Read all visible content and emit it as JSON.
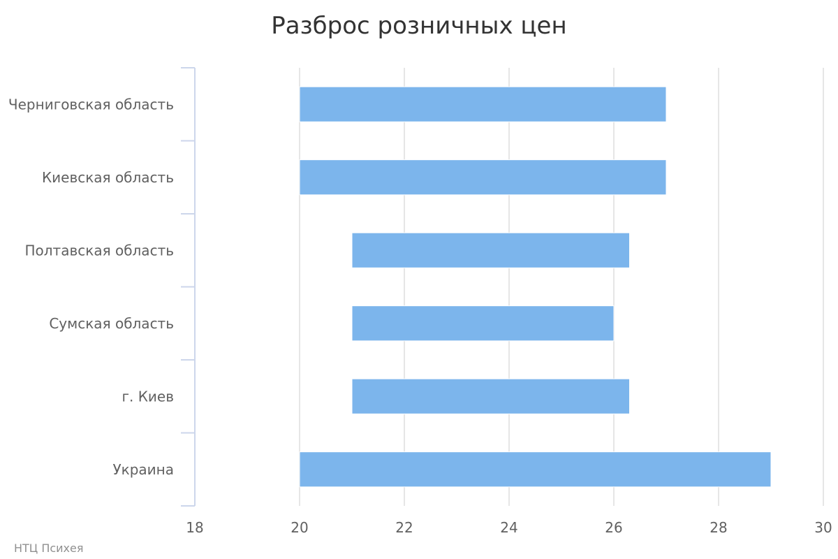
{
  "chart_data": {
    "type": "bar",
    "orientation": "horizontal",
    "subtype": "range",
    "title": "Разброс розничных цен",
    "categories": [
      "Черниговская область",
      "Киевская область",
      "Полтавская область",
      "Сумская область",
      "г. Киев",
      "Украина"
    ],
    "series": [
      {
        "low": [
          20,
          20,
          21,
          21,
          21,
          20
        ],
        "high": [
          27,
          27,
          26.3,
          26,
          26.3,
          29
        ]
      }
    ],
    "xlim": [
      18,
      30
    ],
    "xticks": [
      18,
      20,
      22,
      24,
      26,
      28,
      30
    ],
    "xtick_labels": [
      "18",
      "20",
      "22",
      "24",
      "26",
      "28",
      "30"
    ],
    "grid": true,
    "legend": "none",
    "bar_color": "#7cb5ec",
    "credits": "НТЦ Психея"
  }
}
